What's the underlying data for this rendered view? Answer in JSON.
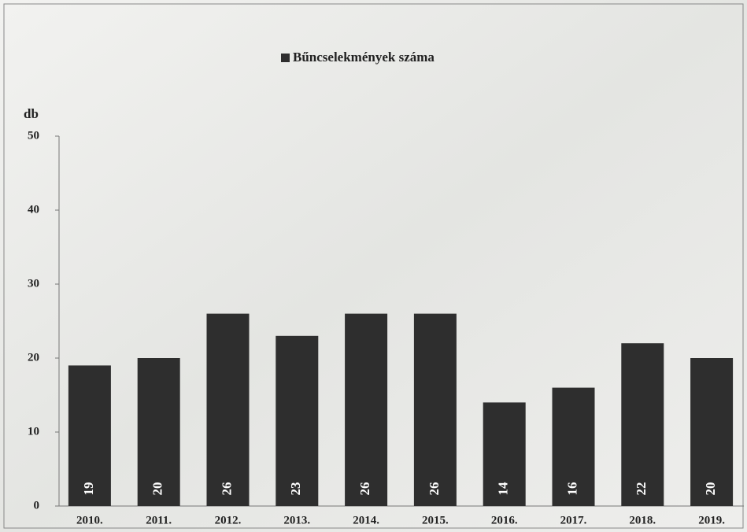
{
  "chart_data": {
    "type": "bar",
    "y_label": "db",
    "categories": [
      "2010.",
      "2011.",
      "2012.",
      "2013.",
      "2014.",
      "2015.",
      "2016.",
      "2017.",
      "2018.",
      "2019."
    ],
    "series": [
      {
        "name": "Bűncselekmények száma",
        "color": "#2e2e2e",
        "values": [
          19,
          20,
          26,
          23,
          26,
          26,
          14,
          16,
          22,
          20
        ]
      }
    ],
    "ylim": [
      0,
      50
    ],
    "yticks": [
      0,
      10,
      20,
      30,
      40,
      50
    ],
    "grid": false,
    "data_labels": true,
    "legend": "top"
  }
}
